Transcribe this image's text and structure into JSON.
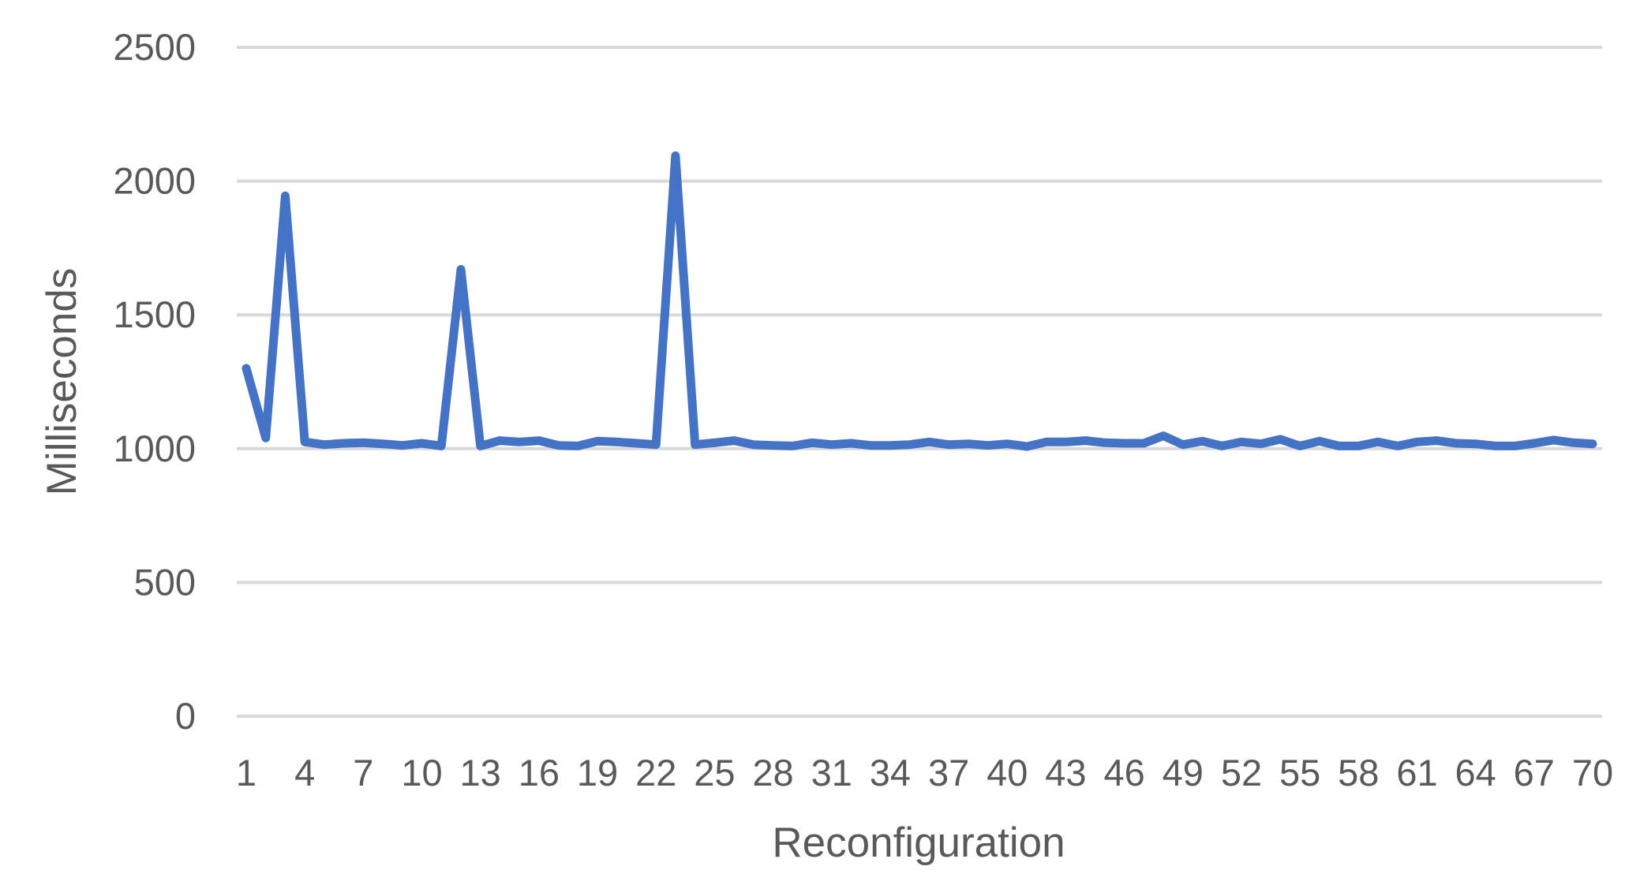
{
  "chart_data": {
    "type": "line",
    "xlabel": "Reconfiguration",
    "ylabel": "Milliseconds",
    "ylim": [
      0,
      2500
    ],
    "yticks": [
      0,
      500,
      1000,
      1500,
      2000,
      2500
    ],
    "grid": true,
    "legend": "none",
    "x": [
      1,
      2,
      3,
      4,
      5,
      6,
      7,
      8,
      9,
      10,
      11,
      12,
      13,
      14,
      15,
      16,
      17,
      18,
      19,
      20,
      21,
      22,
      23,
      24,
      25,
      26,
      27,
      28,
      29,
      30,
      31,
      32,
      33,
      34,
      35,
      36,
      37,
      38,
      39,
      40,
      41,
      42,
      43,
      44,
      45,
      46,
      47,
      48,
      49,
      50,
      51,
      52,
      53,
      54,
      55,
      56,
      57,
      58,
      59,
      60,
      61,
      62,
      63,
      64,
      65,
      66,
      67,
      68,
      69,
      70
    ],
    "xtick_labels": [
      "1",
      "4",
      "7",
      "10",
      "13",
      "16",
      "19",
      "22",
      "25",
      "28",
      "31",
      "34",
      "37",
      "40",
      "43",
      "46",
      "49",
      "52",
      "55",
      "58",
      "61",
      "64",
      "67",
      "70"
    ],
    "series": [
      {
        "color": "#4472c4",
        "values": [
          1300,
          1040,
          1945,
          1025,
          1015,
          1020,
          1022,
          1018,
          1012,
          1020,
          1010,
          1670,
          1010,
          1030,
          1025,
          1030,
          1012,
          1010,
          1028,
          1025,
          1020,
          1015,
          2095,
          1015,
          1022,
          1030,
          1015,
          1012,
          1010,
          1022,
          1015,
          1020,
          1012,
          1012,
          1015,
          1025,
          1015,
          1018,
          1012,
          1018,
          1008,
          1025,
          1025,
          1030,
          1022,
          1020,
          1020,
          1048,
          1015,
          1028,
          1010,
          1025,
          1018,
          1035,
          1010,
          1028,
          1010,
          1010,
          1025,
          1010,
          1025,
          1030,
          1020,
          1018,
          1010,
          1010,
          1020,
          1032,
          1022,
          1018
        ]
      }
    ]
  }
}
